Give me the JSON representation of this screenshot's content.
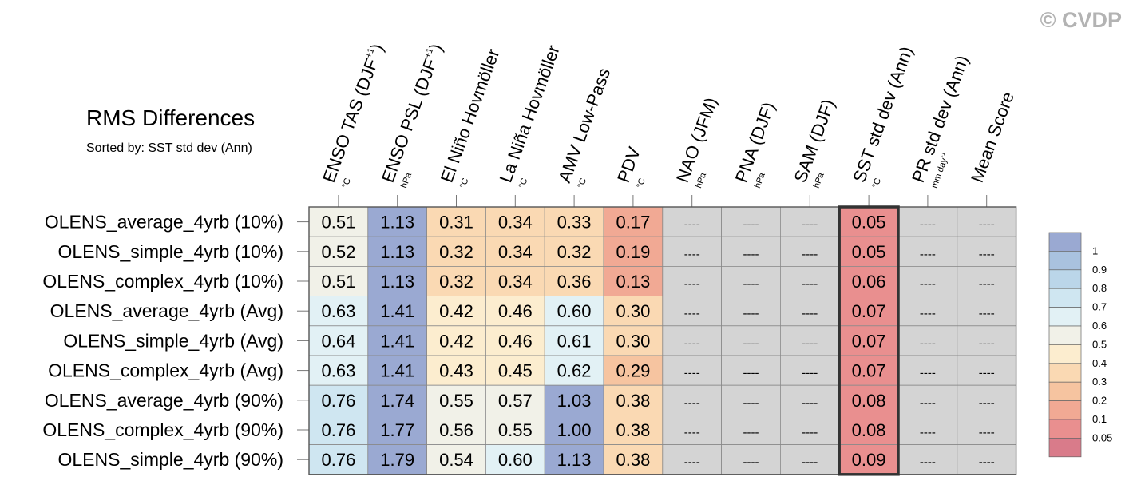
{
  "copyright": "© CVDP",
  "chart_data": {
    "type": "table",
    "title": "RMS Differences",
    "subtitle": "Sorted by: SST std dev (Ann)",
    "highlight_column": "SST std dev (Ann)",
    "missing_text": "----",
    "columns": [
      {
        "label": "ENSO TAS (DJF",
        "sup": "+1",
        "close": ")",
        "unit": "°C"
      },
      {
        "label": "ENSO PSL (DJF",
        "sup": "+1",
        "close": ")",
        "unit": "hPa"
      },
      {
        "label": "El Niño Hovmöller",
        "unit": "°C"
      },
      {
        "label": "La Niña Hovmöller",
        "unit": "°C"
      },
      {
        "label": "AMV Low-Pass",
        "unit": "°C"
      },
      {
        "label": "PDV",
        "unit": "°C"
      },
      {
        "label": "NAO (JFM)",
        "unit": "hPa"
      },
      {
        "label": "PNA (DJF)",
        "unit": "hPa"
      },
      {
        "label": "SAM (DJF)",
        "unit": "hPa"
      },
      {
        "label": "SST std dev (Ann)",
        "unit": "°C"
      },
      {
        "label": "PR std dev (Ann)",
        "unit": "mm day",
        "unit_sup": "-1"
      },
      {
        "label": "Mean Score",
        "unit": ""
      }
    ],
    "rows": [
      {
        "name": "OLENS_average_4yrb (10%)",
        "values": [
          0.51,
          1.13,
          0.31,
          0.34,
          0.33,
          0.17,
          null,
          null,
          null,
          0.05,
          null,
          null
        ]
      },
      {
        "name": "OLENS_simple_4yrb (10%)",
        "values": [
          0.52,
          1.13,
          0.32,
          0.34,
          0.32,
          0.19,
          null,
          null,
          null,
          0.05,
          null,
          null
        ]
      },
      {
        "name": "OLENS_complex_4yrb (10%)",
        "values": [
          0.51,
          1.13,
          0.32,
          0.34,
          0.36,
          0.13,
          null,
          null,
          null,
          0.06,
          null,
          null
        ]
      },
      {
        "name": "OLENS_average_4yrb (Avg)",
        "values": [
          0.63,
          1.41,
          0.42,
          0.46,
          0.6,
          0.3,
          null,
          null,
          null,
          0.07,
          null,
          null
        ]
      },
      {
        "name": "OLENS_simple_4yrb (Avg)",
        "values": [
          0.64,
          1.41,
          0.42,
          0.46,
          0.61,
          0.3,
          null,
          null,
          null,
          0.07,
          null,
          null
        ]
      },
      {
        "name": "OLENS_complex_4yrb (Avg)",
        "values": [
          0.63,
          1.41,
          0.43,
          0.45,
          0.62,
          0.29,
          null,
          null,
          null,
          0.07,
          null,
          null
        ]
      },
      {
        "name": "OLENS_average_4yrb (90%)",
        "values": [
          0.76,
          1.74,
          0.55,
          0.57,
          1.03,
          0.38,
          null,
          null,
          null,
          0.08,
          null,
          null
        ]
      },
      {
        "name": "OLENS_complex_4yrb (90%)",
        "values": [
          0.76,
          1.77,
          0.56,
          0.55,
          1.0,
          0.38,
          null,
          null,
          null,
          0.08,
          null,
          null
        ]
      },
      {
        "name": "OLENS_simple_4yrb (90%)",
        "values": [
          0.76,
          1.79,
          0.54,
          0.6,
          1.13,
          0.38,
          null,
          null,
          null,
          0.09,
          null,
          null
        ]
      }
    ],
    "missing_color": "#d4d4d4",
    "colorbar": {
      "labels": [
        "1",
        "0.9",
        "0.8",
        "0.7",
        "0.6",
        "0.5",
        "0.4",
        "0.3",
        "0.2",
        "0.1",
        "0.05"
      ],
      "bins": [
        {
          "min": 1.0,
          "color": "#9aa9d2"
        },
        {
          "min": 0.9,
          "color": "#a9c2df"
        },
        {
          "min": 0.8,
          "color": "#bbd6e9"
        },
        {
          "min": 0.7,
          "color": "#cfe6f1"
        },
        {
          "min": 0.6,
          "color": "#e2f1f5"
        },
        {
          "min": 0.5,
          "color": "#f1f1e8"
        },
        {
          "min": 0.4,
          "color": "#fcedcf"
        },
        {
          "min": 0.3,
          "color": "#fad9b3"
        },
        {
          "min": 0.2,
          "color": "#f6c4a0"
        },
        {
          "min": 0.1,
          "color": "#f1a994"
        },
        {
          "min": 0.05,
          "color": "#e98f8f"
        },
        {
          "min": 0.0,
          "color": "#d97b8a"
        }
      ]
    }
  }
}
